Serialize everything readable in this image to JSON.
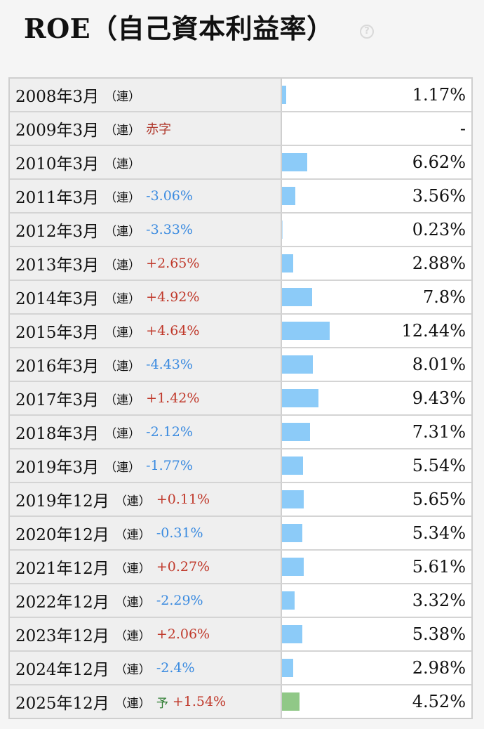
{
  "header": {
    "title": "ROE（自己資本利益率）",
    "help_icon": "question-circle-icon"
  },
  "colors": {
    "bar_actual": "#8ccbf8",
    "bar_forecast": "#90c887",
    "change_up": "#c0392b",
    "change_down": "#3b8be0"
  },
  "chart_data": {
    "type": "table",
    "max_value": 12.44,
    "rows": [
      {
        "period": "2008年3月",
        "consol": "（連）",
        "change": "",
        "value": 1.17,
        "value_text": "1.17%"
      },
      {
        "period": "2009年3月",
        "consol": "（連）",
        "change": "赤字",
        "value": null,
        "value_text": "-"
      },
      {
        "period": "2010年3月",
        "consol": "（連）",
        "change": "",
        "value": 6.62,
        "value_text": "6.62%"
      },
      {
        "period": "2011年3月",
        "consol": "（連）",
        "change": "-3.06%",
        "value": 3.56,
        "value_text": "3.56%"
      },
      {
        "period": "2012年3月",
        "consol": "（連）",
        "change": "-3.33%",
        "value": 0.23,
        "value_text": "0.23%"
      },
      {
        "period": "2013年3月",
        "consol": "（連）",
        "change": "+2.65%",
        "value": 2.88,
        "value_text": "2.88%"
      },
      {
        "period": "2014年3月",
        "consol": "（連）",
        "change": "+4.92%",
        "value": 7.8,
        "value_text": "7.8%"
      },
      {
        "period": "2015年3月",
        "consol": "（連）",
        "change": "+4.64%",
        "value": 12.44,
        "value_text": "12.44%"
      },
      {
        "period": "2016年3月",
        "consol": "（連）",
        "change": "-4.43%",
        "value": 8.01,
        "value_text": "8.01%"
      },
      {
        "period": "2017年3月",
        "consol": "（連）",
        "change": "+1.42%",
        "value": 9.43,
        "value_text": "9.43%"
      },
      {
        "period": "2018年3月",
        "consol": "（連）",
        "change": "-2.12%",
        "value": 7.31,
        "value_text": "7.31%"
      },
      {
        "period": "2019年3月",
        "consol": "（連）",
        "change": "-1.77%",
        "value": 5.54,
        "value_text": "5.54%"
      },
      {
        "period": "2019年12月",
        "consol": "（連）",
        "change": "+0.11%",
        "value": 5.65,
        "value_text": "5.65%"
      },
      {
        "period": "2020年12月",
        "consol": "（連）",
        "change": "-0.31%",
        "value": 5.34,
        "value_text": "5.34%"
      },
      {
        "period": "2021年12月",
        "consol": "（連）",
        "change": "+0.27%",
        "value": 5.61,
        "value_text": "5.61%"
      },
      {
        "period": "2022年12月",
        "consol": "（連）",
        "change": "-2.29%",
        "value": 3.32,
        "value_text": "3.32%"
      },
      {
        "period": "2023年12月",
        "consol": "（連）",
        "change": "+2.06%",
        "value": 5.38,
        "value_text": "5.38%"
      },
      {
        "period": "2024年12月",
        "consol": "（連）",
        "change": "-2.4%",
        "value": 2.98,
        "value_text": "2.98%"
      },
      {
        "period": "2025年12月",
        "consol": "（連）",
        "forecast": "予",
        "change": "+1.54%",
        "value": 4.52,
        "value_text": "4.52%"
      }
    ]
  }
}
